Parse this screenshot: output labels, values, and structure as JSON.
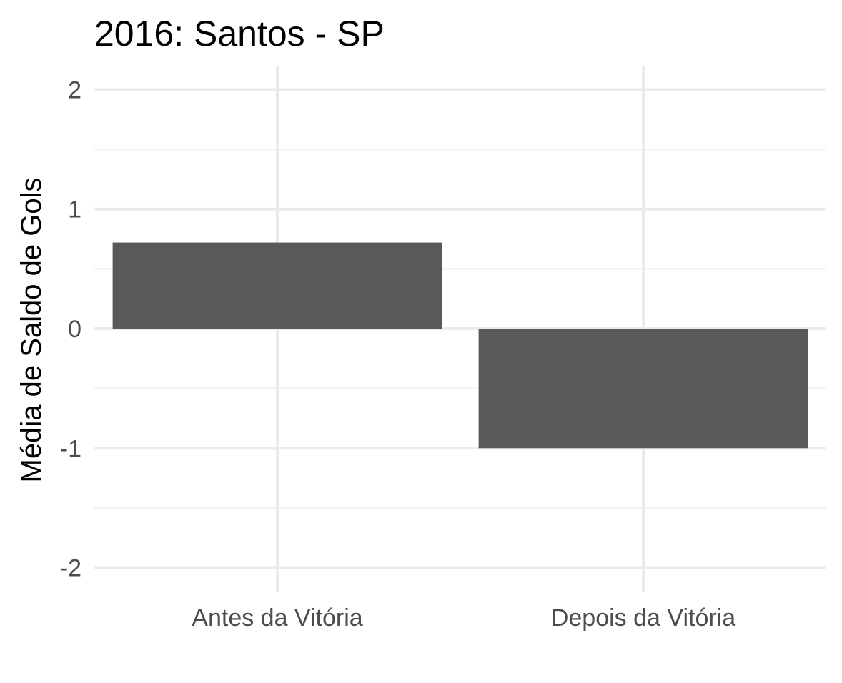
{
  "chart_data": {
    "type": "bar",
    "title": "2016: Santos - SP",
    "xlabel": "",
    "ylabel": "Média de Saldo de Gols",
    "categories": [
      "Antes da Vitória",
      "Depois da Vitória"
    ],
    "values": [
      0.72,
      -1.0
    ],
    "ylim": [
      -2.2,
      2.2
    ],
    "yticks": [
      2,
      1,
      0,
      -1,
      -2
    ],
    "ytick_labels": [
      "2",
      "1",
      "0",
      "-1",
      "-2"
    ],
    "grid": true,
    "legend": "none",
    "colors": {
      "bar": "#595959",
      "grid_major": "#ebebeb",
      "grid_minor": "#f2f2f2",
      "text": "#000000",
      "tick_text": "#4d4d4d"
    }
  }
}
